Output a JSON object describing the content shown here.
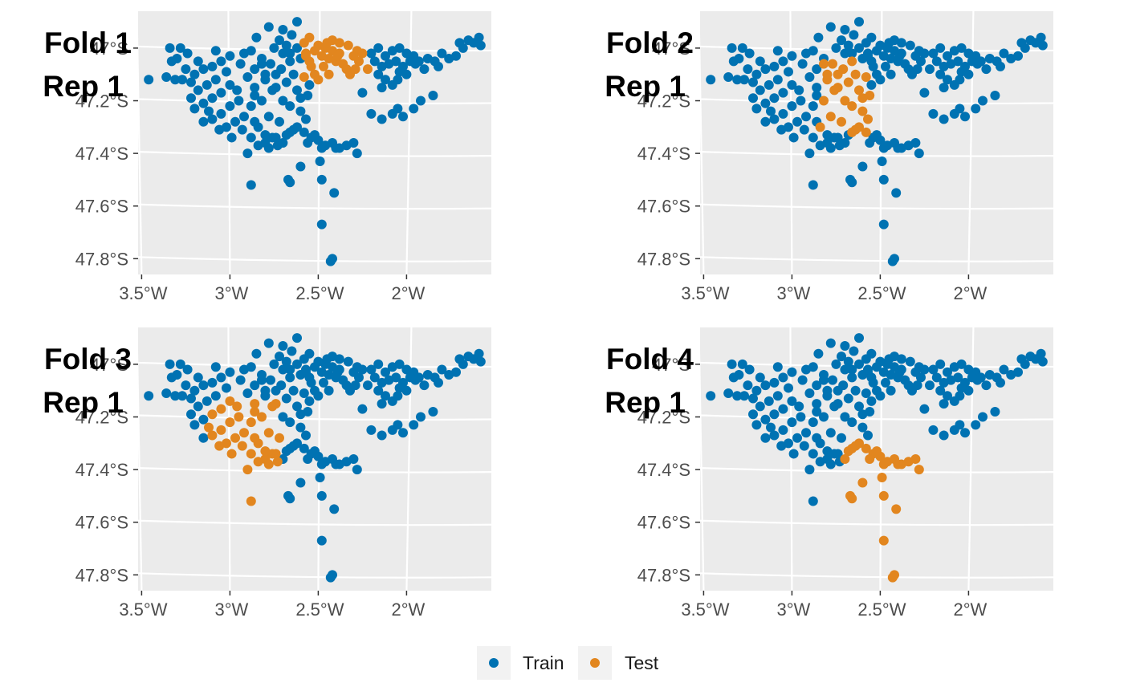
{
  "chart_data": {
    "type": "scatter",
    "colors": {
      "train": "#0072B2",
      "test": "#E2861F",
      "panel_bg": "#EBEBEB",
      "grid": "#FFFFFF"
    },
    "xlim": [
      -3.52,
      -1.52
    ],
    "ylim": [
      -47.86,
      -46.86
    ],
    "x_ticks": [
      {
        "value": -3.5,
        "label": "3.5°W"
      },
      {
        "value": -3.0,
        "label": "3°W"
      },
      {
        "value": -2.5,
        "label": "2.5°W"
      },
      {
        "value": -2.0,
        "label": "2°W"
      }
    ],
    "y_ticks": [
      {
        "value": -47.0,
        "label": "47°S"
      },
      {
        "value": -47.2,
        "label": "47.2°S"
      },
      {
        "value": -47.4,
        "label": "47.4°S"
      },
      {
        "value": -47.6,
        "label": "47.6°S"
      },
      {
        "value": -47.8,
        "label": "47.8°S"
      }
    ],
    "legend": {
      "placement": "bottom",
      "entries": [
        {
          "key": "train",
          "label": "Train"
        },
        {
          "key": "test",
          "label": "Test"
        }
      ]
    },
    "panels": [
      {
        "title_line1": "Fold 1",
        "title_line2": "Rep 1",
        "test_region": {
          "x": [
            -2.58,
            -2.22
          ],
          "y": [
            -47.13,
            -46.95
          ]
        }
      },
      {
        "title_line1": "Fold 2",
        "title_line2": "Rep 1",
        "test_region": {
          "x": [
            -2.85,
            -2.56
          ],
          "y": [
            -47.32,
            -47.05
          ]
        }
      },
      {
        "title_line1": "Fold 3",
        "title_line2": "Rep 1",
        "test_region": {
          "x": [
            -3.12,
            -2.72
          ],
          "y": [
            -47.55,
            -47.13
          ]
        }
      },
      {
        "title_line1": "Fold 4",
        "title_line2": "Rep 1",
        "test_region": {
          "x": [
            -2.72,
            -2.22
          ],
          "y": [
            -47.85,
            -47.29
          ]
        }
      }
    ],
    "points": [
      [
        -2.62,
        -46.9
      ],
      [
        -2.78,
        -46.92
      ],
      [
        -2.7,
        -46.93
      ],
      [
        -2.65,
        -46.95
      ],
      [
        -2.55,
        -46.96
      ],
      [
        -2.85,
        -46.96
      ],
      [
        -2.72,
        -46.97
      ],
      [
        -2.58,
        -46.98
      ],
      [
        -2.68,
        -46.99
      ],
      [
        -2.75,
        -47.0
      ],
      [
        -2.62,
        -47.0
      ],
      [
        -2.52,
        -47.01
      ],
      [
        -2.88,
        -47.01
      ],
      [
        -2.7,
        -47.02
      ],
      [
        -2.57,
        -47.03
      ],
      [
        -2.82,
        -47.04
      ],
      [
        -2.66,
        -47.05
      ],
      [
        -2.6,
        -47.04
      ],
      [
        -2.77,
        -47.06
      ],
      [
        -2.54,
        -47.07
      ],
      [
        -2.71,
        -47.08
      ],
      [
        -2.64,
        -47.1
      ],
      [
        -2.58,
        -47.11
      ],
      [
        -2.8,
        -47.12
      ],
      [
        -2.68,
        -47.13
      ],
      [
        -2.74,
        -47.15
      ],
      [
        -2.62,
        -47.16
      ],
      [
        -2.56,
        -47.18
      ],
      [
        -2.86,
        -47.18
      ],
      [
        -2.7,
        -47.2
      ],
      [
        -2.66,
        -47.22
      ],
      [
        -2.6,
        -47.24
      ],
      [
        -2.78,
        -47.26
      ],
      [
        -2.72,
        -47.28
      ],
      [
        -2.57,
        -47.27
      ],
      [
        -2.84,
        -47.3
      ],
      [
        -2.64,
        -47.31
      ],
      [
        -2.68,
        -47.33
      ],
      [
        -2.76,
        -47.34
      ],
      [
        -2.8,
        -47.36
      ],
      [
        -2.73,
        -47.37
      ],
      [
        -2.52,
        -47.1
      ],
      [
        -2.55,
        -47.14
      ],
      [
        -2.66,
        -47.02
      ],
      [
        -2.6,
        -47.19
      ],
      [
        -2.5,
        -46.99
      ],
      [
        -2.46,
        -47.0
      ],
      [
        -2.42,
        -47.01
      ],
      [
        -2.38,
        -47.02
      ],
      [
        -2.33,
        -46.99
      ],
      [
        -2.28,
        -47.01
      ],
      [
        -2.48,
        -47.03
      ],
      [
        -2.44,
        -47.04
      ],
      [
        -2.4,
        -47.05
      ],
      [
        -2.36,
        -47.06
      ],
      [
        -2.3,
        -47.03
      ],
      [
        -2.25,
        -47.02
      ],
      [
        -2.47,
        -47.07
      ],
      [
        -2.34,
        -47.08
      ],
      [
        -2.42,
        -46.97
      ],
      [
        -2.38,
        -46.98
      ],
      [
        -2.55,
        -47.05
      ],
      [
        -2.32,
        -47.1
      ],
      [
        -2.44,
        -47.1
      ],
      [
        -2.5,
        -47.12
      ],
      [
        -2.27,
        -47.05
      ],
      [
        -2.39,
        -47.03
      ],
      [
        -2.57,
        -47.02
      ],
      [
        -2.45,
        -46.98
      ],
      [
        -2.29,
        -47.08
      ],
      [
        -2.2,
        -47.02
      ],
      [
        -2.16,
        -47.0
      ],
      [
        -2.12,
        -47.03
      ],
      [
        -2.08,
        -47.01
      ],
      [
        -2.04,
        -47.0
      ],
      [
        -2.0,
        -47.02
      ],
      [
        -1.96,
        -47.03
      ],
      [
        -2.18,
        -47.05
      ],
      [
        -2.14,
        -47.07
      ],
      [
        -2.1,
        -47.06
      ],
      [
        -2.06,
        -47.05
      ],
      [
        -2.02,
        -47.07
      ],
      [
        -1.98,
        -47.05
      ],
      [
        -2.22,
        -47.08
      ],
      [
        -2.16,
        -47.1
      ],
      [
        -2.12,
        -47.12
      ],
      [
        -2.08,
        -47.14
      ],
      [
        -2.04,
        -47.09
      ],
      [
        -2.0,
        -47.1
      ],
      [
        -1.93,
        -47.05
      ],
      [
        -1.88,
        -47.04
      ],
      [
        -1.84,
        -47.05
      ],
      [
        -1.8,
        -47.02
      ],
      [
        -1.76,
        -47.04
      ],
      [
        -1.72,
        -47.03
      ],
      [
        -1.68,
        -47.0
      ],
      [
        -1.65,
        -46.97
      ],
      [
        -1.62,
        -46.98
      ],
      [
        -1.59,
        -46.96
      ],
      [
        -1.58,
        -46.99
      ],
      [
        -1.7,
        -46.98
      ],
      [
        -1.82,
        -47.07
      ],
      [
        -1.9,
        -47.08
      ],
      [
        -1.95,
        -47.06
      ],
      [
        -2.05,
        -47.12
      ],
      [
        -2.14,
        -47.15
      ],
      [
        -2.25,
        -47.17
      ],
      [
        -2.2,
        -47.25
      ],
      [
        -2.14,
        -47.27
      ],
      [
        -2.08,
        -47.25
      ],
      [
        -2.05,
        -47.23
      ],
      [
        -1.96,
        -47.23
      ],
      [
        -1.92,
        -47.2
      ],
      [
        -1.85,
        -47.18
      ],
      [
        -2.02,
        -47.26
      ],
      [
        -3.05,
        -47.05
      ],
      [
        -3.1,
        -47.07
      ],
      [
        -3.15,
        -47.08
      ],
      [
        -3.2,
        -47.1
      ],
      [
        -3.02,
        -47.09
      ],
      [
        -3.08,
        -47.12
      ],
      [
        -3.13,
        -47.14
      ],
      [
        -3.18,
        -47.16
      ],
      [
        -3.22,
        -47.13
      ],
      [
        -3.0,
        -47.14
      ],
      [
        -3.05,
        -47.17
      ],
      [
        -3.1,
        -47.19
      ],
      [
        -3.15,
        -47.21
      ],
      [
        -3.2,
        -47.23
      ],
      [
        -2.95,
        -47.2
      ],
      [
        -3.0,
        -47.22
      ],
      [
        -3.05,
        -47.25
      ],
      [
        -3.1,
        -47.27
      ],
      [
        -3.15,
        -47.28
      ],
      [
        -2.92,
        -47.26
      ],
      [
        -2.97,
        -47.28
      ],
      [
        -3.02,
        -47.3
      ],
      [
        -3.06,
        -47.31
      ],
      [
        -2.99,
        -47.34
      ],
      [
        -2.93,
        -47.31
      ],
      [
        -3.12,
        -47.24
      ],
      [
        -2.96,
        -47.16
      ],
      [
        -2.9,
        -47.11
      ],
      [
        -2.86,
        -47.15
      ],
      [
        -2.88,
        -47.22
      ],
      [
        -3.18,
        -47.05
      ],
      [
        -3.25,
        -47.08
      ],
      [
        -3.3,
        -47.04
      ],
      [
        -3.34,
        -47.0
      ],
      [
        -3.28,
        -47.0
      ],
      [
        -3.24,
        -47.02
      ],
      [
        -3.46,
        -47.12
      ],
      [
        -3.36,
        -47.11
      ],
      [
        -3.31,
        -47.12
      ],
      [
        -3.33,
        -47.05
      ],
      [
        -3.27,
        -47.12
      ],
      [
        -3.22,
        -47.19
      ],
      [
        -3.08,
        -47.01
      ],
      [
        -3.0,
        -47.03
      ],
      [
        -2.94,
        -47.06
      ],
      [
        -2.82,
        -47.06
      ],
      [
        -2.8,
        -47.1
      ],
      [
        -2.76,
        -47.16
      ],
      [
        -2.82,
        -47.2
      ],
      [
        -2.86,
        -47.28
      ],
      [
        -2.8,
        -47.33
      ],
      [
        -2.84,
        -47.37
      ],
      [
        -2.78,
        -47.38
      ],
      [
        -2.74,
        -47.34
      ],
      [
        -2.7,
        -47.36
      ],
      [
        -2.88,
        -47.34
      ],
      [
        -2.9,
        -47.4
      ],
      [
        -2.92,
        -47.02
      ],
      [
        -2.86,
        -47.08
      ],
      [
        -2.74,
        -47.1
      ],
      [
        -2.62,
        -47.3
      ],
      [
        -2.58,
        -47.32
      ],
      [
        -2.54,
        -47.34
      ],
      [
        -2.5,
        -47.35
      ],
      [
        -2.46,
        -47.37
      ],
      [
        -2.42,
        -47.36
      ],
      [
        -2.38,
        -47.38
      ],
      [
        -2.34,
        -47.37
      ],
      [
        -2.3,
        -47.36
      ],
      [
        -2.28,
        -47.4
      ],
      [
        -2.48,
        -47.38
      ],
      [
        -2.56,
        -47.36
      ],
      [
        -2.4,
        -47.38
      ],
      [
        -2.66,
        -47.32
      ],
      [
        -2.52,
        -47.33
      ],
      [
        -2.88,
        -47.52
      ],
      [
        -2.67,
        -47.5
      ],
      [
        -2.66,
        -47.51
      ],
      [
        -2.6,
        -47.45
      ],
      [
        -2.49,
        -47.43
      ],
      [
        -2.48,
        -47.5
      ],
      [
        -2.41,
        -47.55
      ],
      [
        -2.48,
        -47.67
      ],
      [
        -2.42,
        -47.8
      ],
      [
        -2.43,
        -47.81
      ]
    ]
  }
}
